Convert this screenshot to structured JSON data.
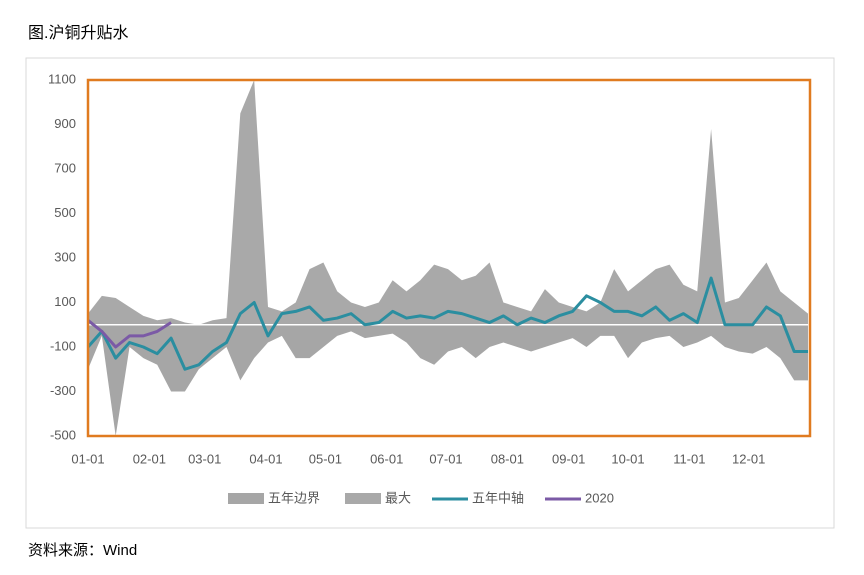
{
  "chart_data": {
    "type": "line",
    "title": "图.沪铜升贴水",
    "source": "资料来源：Wind",
    "x": [
      0,
      7,
      14,
      21,
      28,
      35,
      42,
      49,
      56,
      63,
      70,
      77,
      84,
      91,
      98,
      105,
      112,
      119,
      126,
      133,
      140,
      147,
      154,
      161,
      168,
      175,
      182,
      189,
      196,
      203,
      210,
      217,
      224,
      231,
      238,
      245,
      252,
      259,
      266,
      273,
      280,
      287,
      294,
      301,
      308,
      315,
      322,
      329,
      336,
      343,
      350,
      357,
      364
    ],
    "xlim": [
      0,
      365
    ],
    "xticks": [
      {
        "value": 0,
        "label": "01-01"
      },
      {
        "value": 31,
        "label": "02-01"
      },
      {
        "value": 59,
        "label": "03-01"
      },
      {
        "value": 90,
        "label": "04-01"
      },
      {
        "value": 120,
        "label": "05-01"
      },
      {
        "value": 151,
        "label": "06-01"
      },
      {
        "value": 181,
        "label": "07-01"
      },
      {
        "value": 212,
        "label": "08-01"
      },
      {
        "value": 243,
        "label": "09-01"
      },
      {
        "value": 273,
        "label": "10-01"
      },
      {
        "value": 304,
        "label": "11-01"
      },
      {
        "value": 334,
        "label": "12-01"
      }
    ],
    "ylim": [
      -500,
      1100
    ],
    "yticks": [
      -500,
      -300,
      -100,
      100,
      300,
      500,
      700,
      900,
      1100
    ],
    "border_color": "#e07b20",
    "series": [
      {
        "name": "五年边界",
        "type": "area",
        "color": "#a6a6a6",
        "values": [
          -200,
          -50,
          -500,
          -100,
          -150,
          -180,
          -300,
          -300,
          -200,
          -150,
          -100,
          -250,
          -150,
          -80,
          -50,
          -150,
          -150,
          -100,
          -50,
          -30,
          -60,
          -50,
          -40,
          -80,
          -150,
          -180,
          -120,
          -100,
          -150,
          -100,
          -80,
          -100,
          -120,
          -100,
          -80,
          -60,
          -100,
          -50,
          -50,
          -150,
          -80,
          -60,
          -50,
          -100,
          -80,
          -50,
          -100,
          -120,
          -130,
          -100,
          -150,
          -250,
          -250
        ]
      },
      {
        "name": "最大",
        "type": "area",
        "color": "#a9a9a9",
        "values": [
          50,
          130,
          120,
          80,
          40,
          20,
          30,
          10,
          0,
          20,
          30,
          950,
          1100,
          80,
          60,
          100,
          250,
          280,
          150,
          100,
          80,
          100,
          200,
          150,
          200,
          270,
          250,
          200,
          220,
          280,
          100,
          80,
          60,
          160,
          100,
          80,
          60,
          100,
          250,
          150,
          200,
          250,
          270,
          180,
          150,
          880,
          100,
          120,
          200,
          280,
          150,
          100,
          50
        ]
      },
      {
        "name": "五年中轴",
        "type": "line",
        "color": "#2b8ea0",
        "values": [
          -100,
          -30,
          -150,
          -80,
          -100,
          -130,
          -60,
          -200,
          -180,
          -120,
          -80,
          50,
          100,
          -50,
          50,
          60,
          80,
          20,
          30,
          50,
          0,
          10,
          60,
          30,
          40,
          30,
          60,
          50,
          30,
          10,
          40,
          0,
          30,
          10,
          40,
          60,
          130,
          100,
          60,
          60,
          40,
          80,
          20,
          50,
          10,
          210,
          0,
          0,
          0,
          80,
          40,
          -120,
          -120
        ]
      },
      {
        "name": "2020",
        "type": "line",
        "color": "#7b5aa6",
        "values": [
          20,
          -30,
          -100,
          -50,
          -50,
          -30,
          10,
          null,
          null,
          null,
          null,
          null,
          null,
          null,
          null,
          null,
          null,
          null,
          null,
          null,
          null,
          null,
          null,
          null,
          null,
          null,
          null,
          null,
          null,
          null,
          null,
          null,
          null,
          null,
          null,
          null,
          null,
          null,
          null,
          null,
          null,
          null,
          null,
          null,
          null,
          null,
          null,
          null,
          null,
          null,
          null,
          null,
          null
        ]
      }
    ]
  }
}
